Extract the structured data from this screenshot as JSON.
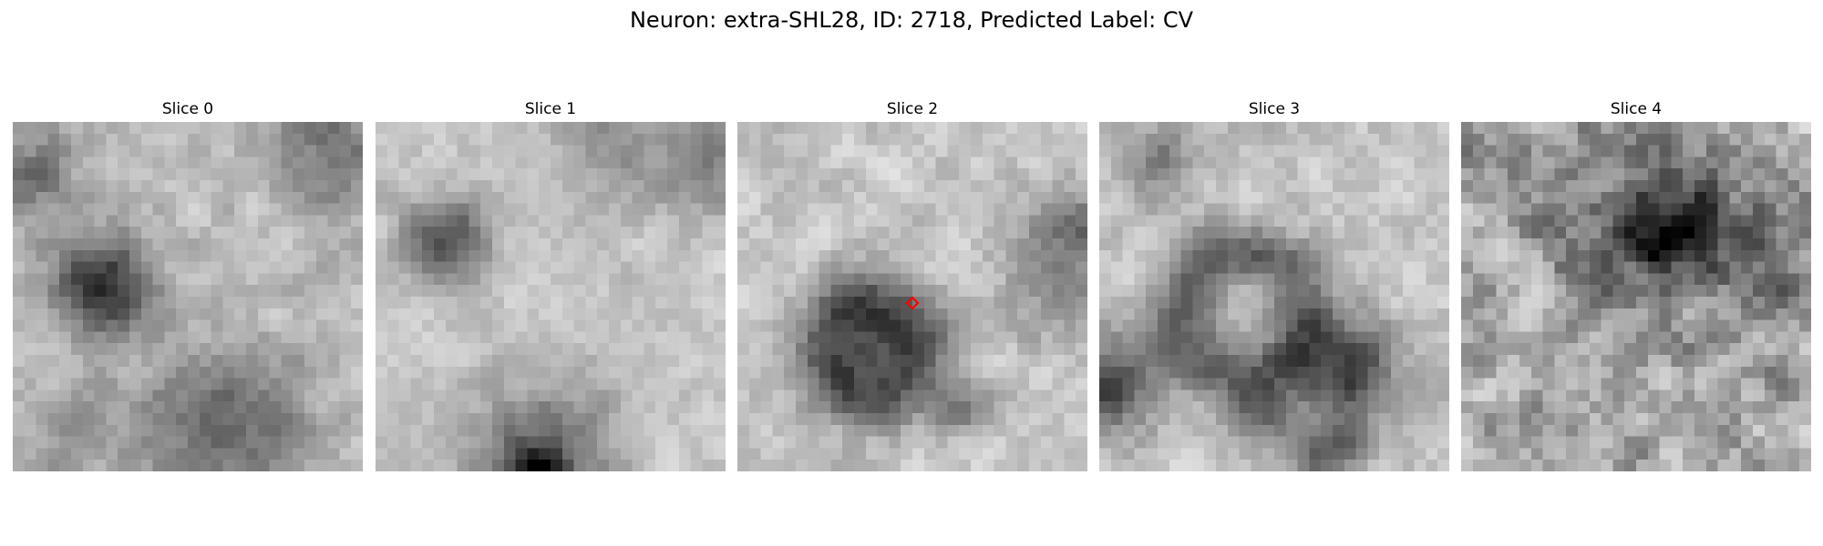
{
  "figure": {
    "title": "Neuron: extra-SHL28, ID: 2718, Predicted Label: CV"
  },
  "colors": {
    "background": "#ffffff",
    "text": "#000000",
    "marker": "#ff0000",
    "colormap": "gray"
  },
  "slices": [
    {
      "title": "Slice 0"
    },
    {
      "title": "Slice 1"
    },
    {
      "title": "Slice 2",
      "marker": "red-diamond"
    },
    {
      "title": "Slice 3"
    },
    {
      "title": "Slice 4"
    }
  ]
}
